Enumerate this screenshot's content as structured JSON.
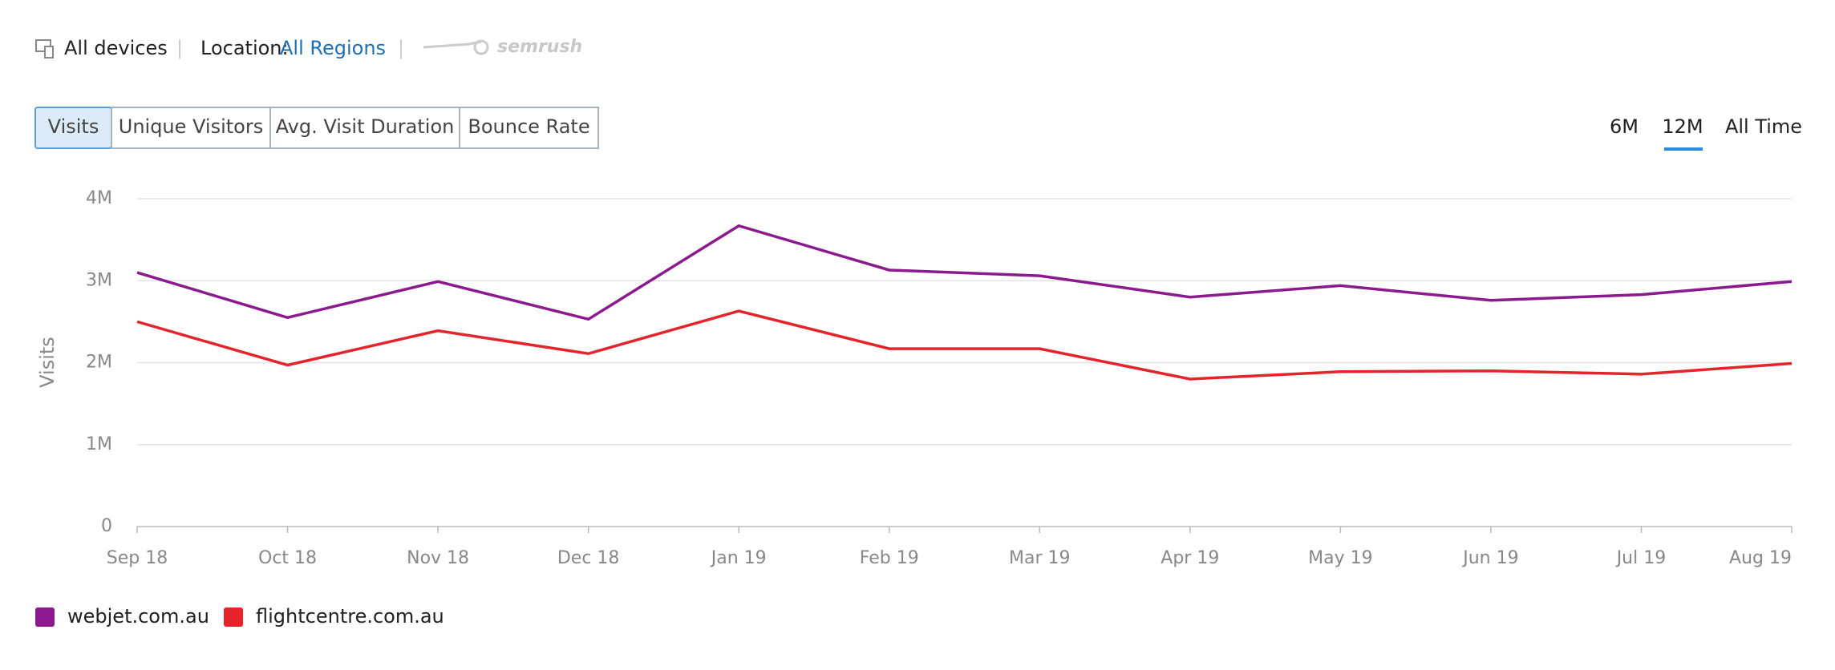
{
  "header": {
    "devices": "All devices",
    "location_label": "Location:",
    "location_value": "All Regions",
    "logo": "semrush"
  },
  "tabs": [
    "Visits",
    "Unique Visitors",
    "Avg. Visit Duration",
    "Bounce Rate"
  ],
  "periods": [
    "6M",
    "12M",
    "All Time"
  ],
  "chart_data": {
    "type": "line",
    "y_label": "Visits",
    "categories": [
      "Sep 18",
      "Oct 18",
      "Nov 18",
      "Dec 18",
      "Jan 19",
      "Feb 19",
      "Mar 19",
      "Apr 19",
      "May 19",
      "Jun 19",
      "Jul 19",
      "Aug 19"
    ],
    "series": [
      {
        "name": "webjet.com.au",
        "color": "#8b1a8e",
        "values": [
          3100000,
          2550000,
          2990000,
          2530000,
          3670000,
          3130000,
          3060000,
          2800000,
          2940000,
          2760000,
          2830000,
          2990000
        ]
      },
      {
        "name": "flightcentre.com.au",
        "color": "#e3242b",
        "values": [
          2500000,
          1970000,
          2390000,
          2110000,
          2630000,
          2170000,
          2170000,
          1800000,
          1890000,
          1900000,
          1860000,
          1990000
        ]
      }
    ],
    "ylim": [
      0,
      4000000
    ],
    "yticks": [
      {
        "value": 0,
        "label": "0"
      },
      {
        "value": 1000000,
        "label": "1M"
      },
      {
        "value": 2000000,
        "label": "2M"
      },
      {
        "value": 3000000,
        "label": "3M"
      },
      {
        "value": 4000000,
        "label": "4M"
      }
    ],
    "grid": true
  }
}
